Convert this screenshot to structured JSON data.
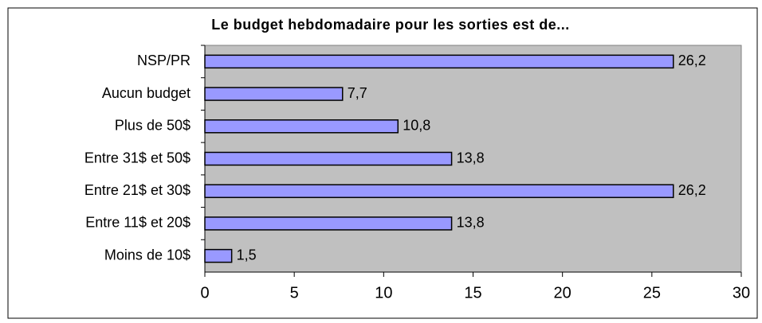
{
  "chart_data": {
    "type": "bar",
    "orientation": "horizontal",
    "title": "Le budget hebdomadaire pour les sorties est de...",
    "categories": [
      "NSP/PR",
      "Aucun budget",
      "Plus de 50$",
      "Entre 31$ et 50$",
      "Entre 21$ et 30$",
      "Entre 11$ et 20$",
      "Moins de 10$"
    ],
    "values": [
      26.2,
      7.7,
      10.8,
      13.8,
      26.2,
      13.8,
      1.5
    ],
    "value_labels": [
      "26,2",
      "7,7",
      "10,8",
      "13,8",
      "26,2",
      "13,8",
      "1,5"
    ],
    "color": "#9999ff",
    "xlim": [
      0,
      30
    ],
    "xticks": [
      0,
      5,
      10,
      15,
      20,
      25,
      30
    ],
    "grid": false
  }
}
